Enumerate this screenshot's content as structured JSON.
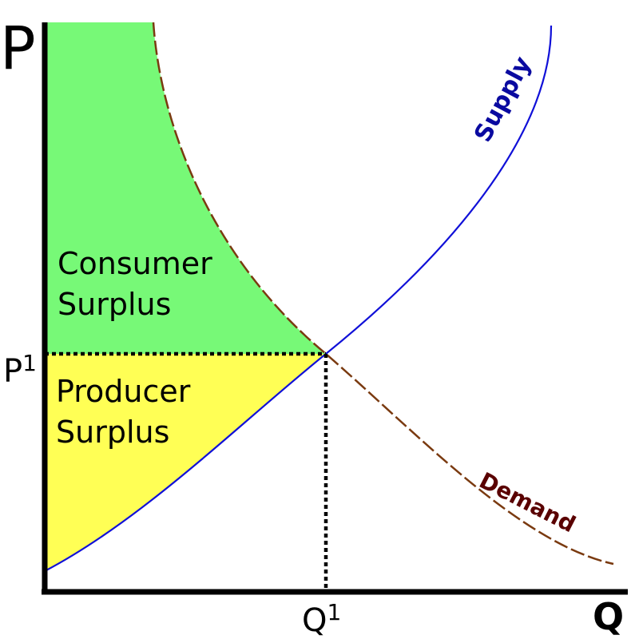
{
  "axes": {
    "y_label": "P",
    "x_label": "Q",
    "p_tick": "P",
    "p_tick_sup": "1",
    "q_tick": "Q",
    "q_tick_sup": "1"
  },
  "curves": {
    "supply_label": "Supply",
    "demand_label": "Demand"
  },
  "regions": {
    "consumer_line1": "Consumer",
    "consumer_line2": "Surplus",
    "producer_line1": "Producer",
    "producer_line2": "Surplus"
  },
  "colors": {
    "consumer_fill": "#77f977",
    "producer_fill": "#ffff55",
    "supply": "#1010d8",
    "demand": "#7a3a10",
    "supply_text": "#0a0aa0",
    "demand_text": "#5a0000",
    "axis": "#000000"
  }
}
